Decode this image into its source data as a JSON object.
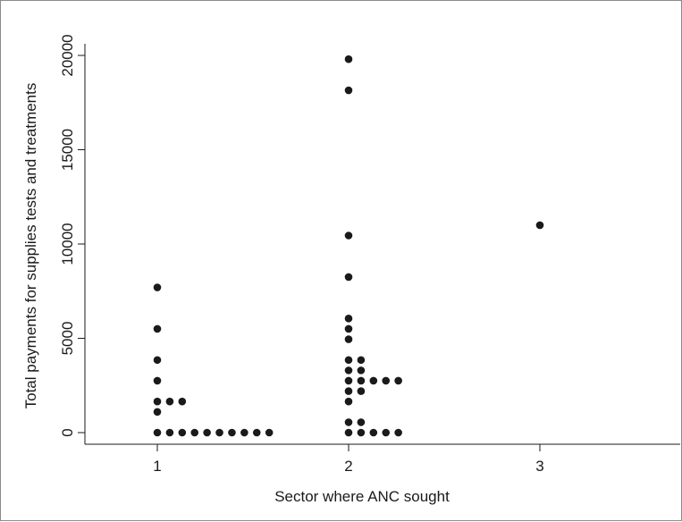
{
  "chart_data": {
    "type": "scatter",
    "title": "",
    "xlabel": "Sector where ANC sought",
    "ylabel": "Total payments for supplies tests and treatments",
    "xlim": [
      0.6,
      3.7
    ],
    "ylim": [
      -800,
      20600
    ],
    "xticks": [
      1,
      2,
      3
    ],
    "yticks": [
      0,
      5000,
      10000,
      15000,
      20000
    ],
    "grid": false,
    "legend": "none",
    "marker_color": "#1a1a1a",
    "points": [
      {
        "x": 1.0,
        "y": 7700
      },
      {
        "x": 1.0,
        "y": 5500
      },
      {
        "x": 1.0,
        "y": 3850
      },
      {
        "x": 1.0,
        "y": 2750
      },
      {
        "x": 1.0,
        "y": 1650
      },
      {
        "x": 1.065,
        "y": 1650
      },
      {
        "x": 1.13,
        "y": 1650
      },
      {
        "x": 1.0,
        "y": 1100
      },
      {
        "x": 1.0,
        "y": 0
      },
      {
        "x": 1.065,
        "y": 0
      },
      {
        "x": 1.13,
        "y": 0
      },
      {
        "x": 1.195,
        "y": 0
      },
      {
        "x": 1.26,
        "y": 0
      },
      {
        "x": 1.325,
        "y": 0
      },
      {
        "x": 1.39,
        "y": 0
      },
      {
        "x": 1.455,
        "y": 0
      },
      {
        "x": 1.52,
        "y": 0
      },
      {
        "x": 1.585,
        "y": 0
      },
      {
        "x": 2.0,
        "y": 19800
      },
      {
        "x": 2.0,
        "y": 18150
      },
      {
        "x": 2.0,
        "y": 10450
      },
      {
        "x": 2.0,
        "y": 8250
      },
      {
        "x": 2.0,
        "y": 6050
      },
      {
        "x": 2.0,
        "y": 5500
      },
      {
        "x": 2.0,
        "y": 4950
      },
      {
        "x": 2.0,
        "y": 3850
      },
      {
        "x": 2.065,
        "y": 3850
      },
      {
        "x": 2.0,
        "y": 3300
      },
      {
        "x": 2.065,
        "y": 3300
      },
      {
        "x": 2.0,
        "y": 2750
      },
      {
        "x": 2.065,
        "y": 2750
      },
      {
        "x": 2.13,
        "y": 2750
      },
      {
        "x": 2.195,
        "y": 2750
      },
      {
        "x": 2.26,
        "y": 2750
      },
      {
        "x": 2.0,
        "y": 2200
      },
      {
        "x": 2.065,
        "y": 2200
      },
      {
        "x": 2.0,
        "y": 1650
      },
      {
        "x": 2.0,
        "y": 550
      },
      {
        "x": 2.065,
        "y": 550
      },
      {
        "x": 2.0,
        "y": 0
      },
      {
        "x": 2.065,
        "y": 0
      },
      {
        "x": 2.13,
        "y": 0
      },
      {
        "x": 2.195,
        "y": 0
      },
      {
        "x": 2.26,
        "y": 0
      },
      {
        "x": 3.0,
        "y": 11000
      }
    ]
  }
}
